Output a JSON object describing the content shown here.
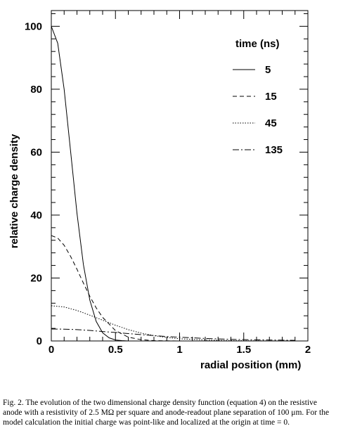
{
  "chart_data": {
    "type": "line",
    "title": "",
    "xlabel": "radial position (mm)",
    "ylabel": "relative charge density",
    "xlim": [
      0,
      2
    ],
    "ylim": [
      0,
      105
    ],
    "x_ticks": [
      "0",
      "0.5",
      "1",
      "1.5",
      "2"
    ],
    "y_ticks": [
      "0",
      "20",
      "40",
      "60",
      "80",
      "100"
    ],
    "grid": false,
    "legend": {
      "title": "time (ns)",
      "placement": "top-right"
    },
    "series": [
      {
        "name": "5",
        "style": "solid",
        "x": [
          0,
          0.05,
          0.1,
          0.15,
          0.2,
          0.25,
          0.3,
          0.35,
          0.4,
          0.45,
          0.5,
          0.55,
          0.6
        ],
        "y": [
          100,
          94.6,
          80.0,
          60.4,
          40.6,
          24.3,
          13.0,
          6.2,
          2.6,
          1.0,
          0.3,
          0.1,
          0
        ]
      },
      {
        "name": "15",
        "style": "dashed",
        "x": [
          0,
          0.05,
          0.1,
          0.15,
          0.2,
          0.25,
          0.3,
          0.35,
          0.4,
          0.5,
          0.6,
          0.7,
          0.8,
          1.0
        ],
        "y": [
          33.5,
          32.7,
          30.4,
          26.9,
          22.8,
          18.4,
          14.2,
          10.5,
          7.5,
          3.3,
          1.2,
          0.4,
          0.1,
          0
        ]
      },
      {
        "name": "45",
        "style": "dotted",
        "x": [
          0,
          0.1,
          0.2,
          0.3,
          0.4,
          0.5,
          0.6,
          0.7,
          0.8,
          0.9,
          1.0,
          1.2,
          1.4,
          1.6,
          1.8,
          1.9
        ],
        "y": [
          11.2,
          10.8,
          9.7,
          8.2,
          6.6,
          5.0,
          3.6,
          2.5,
          1.7,
          1.1,
          0.7,
          0.3,
          0.1,
          0.05,
          0.02,
          0.01
        ]
      },
      {
        "name": "135",
        "style": "dashdot",
        "x": [
          0,
          0.1,
          0.2,
          0.3,
          0.4,
          0.5,
          0.6,
          0.7,
          0.8,
          0.9,
          1.0,
          1.2,
          1.4,
          1.6,
          1.8,
          1.9
        ],
        "y": [
          3.8,
          3.75,
          3.6,
          3.35,
          3.0,
          2.7,
          2.35,
          2.0,
          1.7,
          1.4,
          1.2,
          0.8,
          0.5,
          0.35,
          0.25,
          0.2
        ]
      }
    ]
  },
  "caption": {
    "text": "Fig. 2. The evolution of the two dimensional charge density function (equation 4) on the resistive anode with a resistivity of 2.5 MΩ per square and anode-readout plane separation of 100 μm. For the model calculation the initial charge was point-like and localized at the origin at time = 0."
  }
}
